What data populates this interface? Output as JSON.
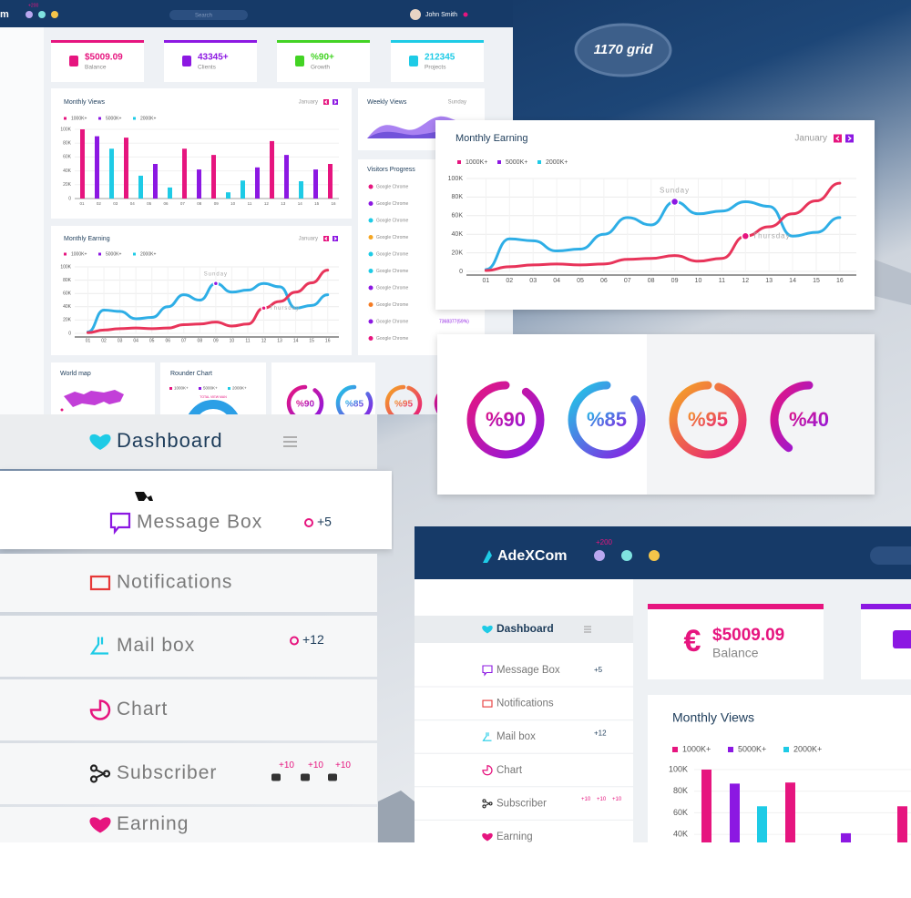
{
  "legend": [
    {
      "name": "1000K+",
      "color": "#e6157f"
    },
    {
      "name": "5000K+",
      "color": "#8c18e2"
    },
    {
      "name": "2000K+",
      "color": "#1ecbe6"
    }
  ],
  "categories": [
    "01",
    "02",
    "03",
    "04",
    "05",
    "06",
    "07",
    "08",
    "09",
    "10",
    "11",
    "12",
    "13",
    "14",
    "15",
    "16"
  ],
  "yticks": [
    0,
    {
      "value": 20,
      "label": "20K"
    },
    {
      "value": 40,
      "label": "40K"
    },
    {
      "value": 60,
      "label": "60K"
    },
    {
      "value": 80,
      "label": "80K"
    },
    {
      "value": 100,
      "label": "100K"
    }
  ],
  "ylim": [
    0,
    100
  ],
  "back": {
    "brand": "m",
    "mail_badge": "+200",
    "search": "Search",
    "user": "John Smith",
    "stats": [
      {
        "value": "$5009.09",
        "label": "Balance",
        "color": "#e6157f"
      },
      {
        "value": "43345+",
        "label": "Clients",
        "color": "#8c18e2"
      },
      {
        "value": "%90+",
        "label": "Growth",
        "color": "#43d324"
      },
      {
        "value": "212345",
        "label": "Projects",
        "color": "#1ecbe6"
      }
    ],
    "monthly_views": {
      "title": "Monthly Views",
      "month": "January",
      "bars": [
        {
          "value": 100,
          "color": "#e6157f"
        },
        {
          "value": 90,
          "color": "#8c18e2"
        },
        {
          "value": 72,
          "color": "#1ecbe6"
        },
        {
          "value": 88,
          "color": "#e6157f"
        },
        {
          "value": 33,
          "color": "#1ecbe6"
        },
        {
          "value": 50,
          "color": "#8c18e2"
        },
        {
          "value": 16,
          "color": "#1ecbe6"
        },
        {
          "value": 72,
          "color": "#e6157f"
        },
        {
          "value": 42,
          "color": "#8c18e2"
        },
        {
          "value": 63,
          "color": "#e6157f"
        },
        {
          "value": 9,
          "color": "#1ecbe6"
        },
        {
          "value": 26,
          "color": "#1ecbe6"
        },
        {
          "value": 45,
          "color": "#8c18e2"
        },
        {
          "value": 83,
          "color": "#e6157f"
        },
        {
          "value": 63,
          "color": "#8c18e2"
        },
        {
          "value": 25,
          "color": "#1ecbe6"
        },
        {
          "value": 42,
          "color": "#8c18e2"
        },
        {
          "value": 50,
          "color": "#e6157f"
        }
      ]
    },
    "weekly_views": {
      "title": "Weekly Views",
      "day": "Sunday"
    },
    "visitors": {
      "title": "Visitors Progress",
      "items": [
        {
          "label": "Google Chrome",
          "color": "#e6157f"
        },
        {
          "label": "Google Chrome",
          "color": "#8c18e2"
        },
        {
          "label": "Google Chrome",
          "color": "#1ecbe6"
        },
        {
          "label": "Google Chrome",
          "color": "#f5a623"
        },
        {
          "label": "Google Chrome",
          "color": "#1ecbe6"
        },
        {
          "label": "Google Chrome",
          "color": "#1ecbe6"
        },
        {
          "label": "Google Chrome",
          "color": "#8c18e2"
        },
        {
          "label": "Google Chrome",
          "color": "#f57c23"
        },
        {
          "label": "Google Chrome",
          "color": "#8c18e2"
        },
        {
          "label": "Google Chrome",
          "color": "#e6157f"
        }
      ],
      "footer": "7368377(59%)"
    },
    "world_map": "World map",
    "rounder": {
      "title": "Rounder Chart",
      "note": "TOTAL VIEW MAN"
    }
  },
  "grid_badge": "1170 grid",
  "monthly_earning": {
    "title": "Monthly Earning",
    "month": "January",
    "lines": [
      {
        "color": "#2eaee6",
        "values": [
          2,
          35,
          33,
          22,
          24,
          40,
          58,
          50,
          75,
          62,
          65,
          75,
          70,
          38,
          42,
          58
        ],
        "annotation": {
          "text": "Sunday",
          "category": "09"
        }
      },
      {
        "color": "#e8345a",
        "values": [
          1,
          5,
          7,
          8,
          7,
          8,
          13,
          14,
          17,
          11,
          14,
          38,
          48,
          62,
          76,
          95
        ],
        "annotation": {
          "text": "Thursday",
          "category": "12"
        }
      }
    ]
  },
  "progress": [
    {
      "value": 90,
      "label": "%90",
      "colors": [
        "#e6157f",
        "#8c18e2"
      ]
    },
    {
      "value": 85,
      "label": "%85",
      "colors": [
        "#1ecbe6",
        "#8c18e2"
      ]
    },
    {
      "value": 95,
      "label": "%95",
      "colors": [
        "#f5a623",
        "#e6157f"
      ]
    },
    {
      "value": 40,
      "label": "%40",
      "colors": [
        "#e6157f",
        "#8c18e2"
      ]
    }
  ],
  "sidebar": [
    {
      "label": "Dashboard"
    },
    {
      "label": "Message Box",
      "badge": "+5"
    },
    {
      "label": "Notifications"
    },
    {
      "label": "Mail box",
      "badge": "+12"
    },
    {
      "label": "Chart"
    },
    {
      "label": "Subscriber",
      "badges": [
        "+10",
        "+10",
        "+10"
      ]
    },
    {
      "label": "Earning"
    }
  ],
  "front": {
    "brand": "AdeXCom",
    "mail_badge": "+200",
    "balance": {
      "value": "$5009.09",
      "label": "Balance",
      "symbol": "€"
    },
    "views_title": "Monthly Views",
    "bars": [
      {
        "value": 100,
        "color": "#e6157f"
      },
      {
        "value": 87,
        "color": "#8c18e2"
      },
      {
        "value": 66,
        "color": "#1ecbe6"
      },
      {
        "value": 88,
        "color": "#e6157f"
      },
      {
        "value": 41,
        "color": "#8c18e2"
      },
      {
        "value": 66,
        "color": "#e6157f"
      }
    ]
  }
}
